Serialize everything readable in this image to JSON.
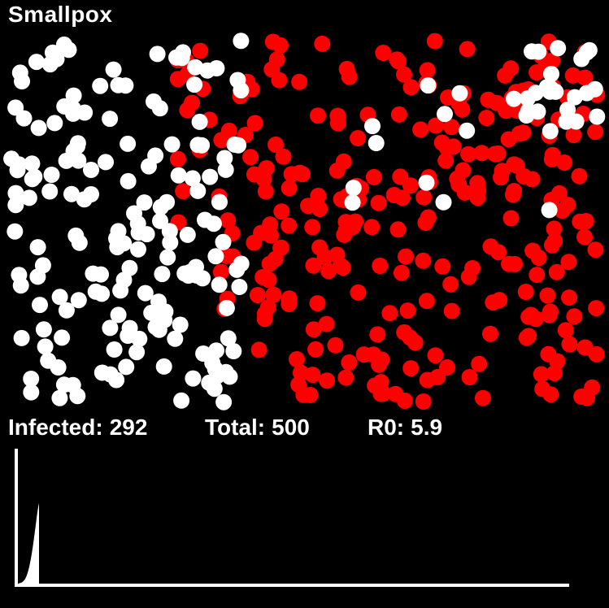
{
  "title": "Smallpox",
  "stats": {
    "infected_label": "Infected:",
    "infected_value": "292",
    "total_label": "Total:",
    "total_value": "500",
    "r0_label": "R0:",
    "r0_value": "5.9"
  },
  "colors": {
    "background": "#000000",
    "healthy": "#ffffff",
    "infected": "#ff0000",
    "graph": "#ffffff"
  },
  "infection_curve": {
    "total_population": 500,
    "infected_now": 292,
    "samples": [
      0,
      1,
      2,
      3,
      5,
      8,
      12,
      18,
      26,
      36,
      49,
      65,
      84,
      106,
      130,
      157,
      186,
      216,
      246,
      272,
      292
    ]
  }
}
